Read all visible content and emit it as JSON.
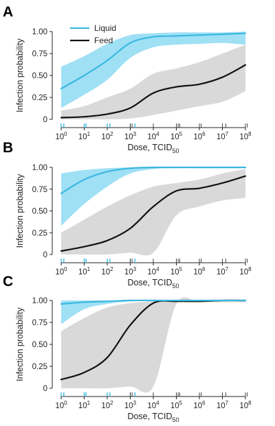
{
  "colors": {
    "liquid": "#3bb8e0",
    "liquid_band": "#7fd6f2",
    "feed": "#111111",
    "feed_band": "#d2d2d2",
    "axis": "#222222"
  },
  "chart_data": [
    {
      "type": "line",
      "panel_label": "A",
      "xlabel": "Dose, TCID",
      "xlabel_sub": "50",
      "ylabel": "Infection probability",
      "x_scale": "log10",
      "xlim": [
        1,
        100000000
      ],
      "ylim": [
        0,
        1
      ],
      "grid": false,
      "legend": {
        "placement": "top-left",
        "entries": [
          "Liquid",
          "Feed"
        ]
      },
      "x_ticks": [
        {
          "value": 1,
          "base": "10",
          "exp": "0"
        },
        {
          "value": 10,
          "base": "10",
          "exp": "1"
        },
        {
          "value": 100,
          "base": "10",
          "exp": "2"
        },
        {
          "value": 1000,
          "base": "10",
          "exp": "3"
        },
        {
          "value": 10000,
          "base": "10",
          "exp": "4"
        },
        {
          "value": 100000,
          "base": "10",
          "exp": "5"
        },
        {
          "value": 1000000,
          "base": "10",
          "exp": "6"
        },
        {
          "value": 10000000,
          "base": "10",
          "exp": "7"
        },
        {
          "value": 100000000,
          "base": "10",
          "exp": "8"
        }
      ],
      "y_ticks": [
        "0",
        "0.25",
        "0.50",
        "0.75",
        "1.00"
      ],
      "y_tick_values": [
        0,
        0.25,
        0.5,
        0.75,
        1.0
      ],
      "x": [
        1,
        10,
        100,
        1000,
        10000,
        100000,
        1000000,
        10000000,
        100000000
      ],
      "series": [
        {
          "name": "Liquid",
          "values": [
            0.35,
            0.5,
            0.67,
            0.87,
            0.94,
            0.95,
            0.96,
            0.97,
            0.98
          ],
          "lower": [
            0.13,
            0.28,
            0.45,
            0.7,
            0.82,
            0.85,
            0.86,
            0.87,
            0.85
          ],
          "upper": [
            0.6,
            0.72,
            0.86,
            0.96,
            0.98,
            0.99,
            0.99,
            0.99,
            1.0
          ]
        },
        {
          "name": "Feed",
          "values": [
            0.02,
            0.03,
            0.06,
            0.13,
            0.3,
            0.37,
            0.4,
            0.48,
            0.62
          ],
          "lower": [
            0.0,
            0.0,
            0.0,
            0.01,
            0.05,
            0.1,
            0.15,
            0.2,
            0.32
          ],
          "upper": [
            0.1,
            0.15,
            0.25,
            0.35,
            0.52,
            0.58,
            0.65,
            0.75,
            0.85
          ]
        }
      ],
      "rug": {
        "liquid": [
          1,
          1.3,
          10,
          12,
          100,
          130,
          1000,
          1600
        ],
        "feed": [
          1000,
          1200,
          10000,
          100000,
          120000,
          140000,
          1000000,
          1200000,
          10000000,
          14000000,
          100000000,
          120000000
        ]
      }
    },
    {
      "type": "line",
      "panel_label": "B",
      "xlabel": "Dose, TCID",
      "xlabel_sub": "50",
      "ylabel": "Infection probability",
      "x_scale": "log10",
      "xlim": [
        1,
        100000000
      ],
      "ylim": [
        0,
        1
      ],
      "grid": false,
      "x_ticks": [
        {
          "value": 1,
          "base": "10",
          "exp": "0"
        },
        {
          "value": 10,
          "base": "10",
          "exp": "1"
        },
        {
          "value": 100,
          "base": "10",
          "exp": "2"
        },
        {
          "value": 1000,
          "base": "10",
          "exp": "3"
        },
        {
          "value": 10000,
          "base": "10",
          "exp": "4"
        },
        {
          "value": 100000,
          "base": "10",
          "exp": "5"
        },
        {
          "value": 1000000,
          "base": "10",
          "exp": "6"
        },
        {
          "value": 10000000,
          "base": "10",
          "exp": "7"
        },
        {
          "value": 100000000,
          "base": "10",
          "exp": "8"
        }
      ],
      "y_ticks": [
        "0",
        "0.25",
        "0.50",
        "0.75",
        "1.00"
      ],
      "y_tick_values": [
        0,
        0.25,
        0.5,
        0.75,
        1.0
      ],
      "x": [
        1,
        10,
        100,
        1000,
        10000,
        100000,
        1000000,
        10000000,
        100000000
      ],
      "series": [
        {
          "name": "Liquid",
          "values": [
            0.7,
            0.86,
            0.95,
            0.99,
            1.0,
            1.0,
            1.0,
            1.0,
            1.0
          ],
          "lower": [
            0.33,
            0.58,
            0.78,
            0.93,
            0.98,
            0.99,
            0.99,
            0.99,
            0.99
          ],
          "upper": [
            0.93,
            0.97,
            0.99,
            1.0,
            1.0,
            1.0,
            1.0,
            1.0,
            1.0
          ]
        },
        {
          "name": "Feed",
          "values": [
            0.04,
            0.09,
            0.16,
            0.3,
            0.55,
            0.73,
            0.76,
            0.82,
            0.9
          ],
          "lower": [
            0.0,
            0.0,
            0.0,
            0.02,
            0.02,
            0.45,
            0.55,
            0.62,
            0.65
          ],
          "upper": [
            0.25,
            0.4,
            0.55,
            0.68,
            0.78,
            0.82,
            0.86,
            0.93,
            0.98
          ]
        }
      ],
      "rug": {
        "liquid": [
          1,
          1.3,
          10,
          12,
          100,
          130,
          1000,
          1600
        ],
        "feed": [
          1000,
          1200,
          10000,
          100000,
          120000,
          140000,
          1000000,
          1200000,
          10000000,
          14000000,
          100000000,
          120000000
        ]
      }
    },
    {
      "type": "line",
      "panel_label": "C",
      "xlabel": "Dose, TCID",
      "xlabel_sub": "50",
      "ylabel": "Infection probability",
      "x_scale": "log10",
      "xlim": [
        1,
        100000000
      ],
      "ylim": [
        0,
        1
      ],
      "grid": false,
      "x_ticks": [
        {
          "value": 1,
          "base": "10",
          "exp": "0"
        },
        {
          "value": 10,
          "base": "10",
          "exp": "1"
        },
        {
          "value": 100,
          "base": "10",
          "exp": "2"
        },
        {
          "value": 1000,
          "base": "10",
          "exp": "3"
        },
        {
          "value": 10000,
          "base": "10",
          "exp": "4"
        },
        {
          "value": 100000,
          "base": "10",
          "exp": "5"
        },
        {
          "value": 1000000,
          "base": "10",
          "exp": "6"
        },
        {
          "value": 10000000,
          "base": "10",
          "exp": "7"
        },
        {
          "value": 100000000,
          "base": "10",
          "exp": "8"
        }
      ],
      "y_ticks": [
        "0",
        "0.25",
        "0.50",
        "0.75",
        "1.00"
      ],
      "y_tick_values": [
        0,
        0.25,
        0.5,
        0.75,
        1.0
      ],
      "x": [
        1,
        10,
        100,
        1000,
        10000,
        100000,
        1000000,
        10000000,
        100000000
      ],
      "series": [
        {
          "name": "Liquid",
          "values": [
            0.96,
            0.98,
            0.99,
            1.0,
            1.0,
            1.0,
            1.0,
            1.0,
            1.0
          ],
          "lower": [
            0.73,
            0.9,
            0.96,
            0.99,
            1.0,
            1.0,
            1.0,
            1.0,
            1.0
          ],
          "upper": [
            1.0,
            1.0,
            1.0,
            1.0,
            1.0,
            1.0,
            1.0,
            1.0,
            1.0
          ]
        },
        {
          "name": "Feed",
          "values": [
            0.1,
            0.18,
            0.35,
            0.72,
            0.97,
            0.99,
            0.99,
            1.0,
            1.0
          ],
          "lower": [
            0.0,
            0.0,
            0.0,
            0.02,
            0.02,
            0.96,
            0.98,
            0.98,
            0.98
          ],
          "upper": [
            0.65,
            0.8,
            0.92,
            0.97,
            0.99,
            1.0,
            1.0,
            1.0,
            1.0
          ]
        }
      ],
      "rug": {
        "liquid": [
          1,
          1.3,
          10,
          12,
          100,
          130,
          1000,
          1600
        ],
        "feed": [
          1000,
          1200,
          10000,
          100000,
          120000,
          140000,
          1000000,
          1200000,
          10000000,
          14000000,
          100000000,
          120000000
        ]
      }
    }
  ]
}
